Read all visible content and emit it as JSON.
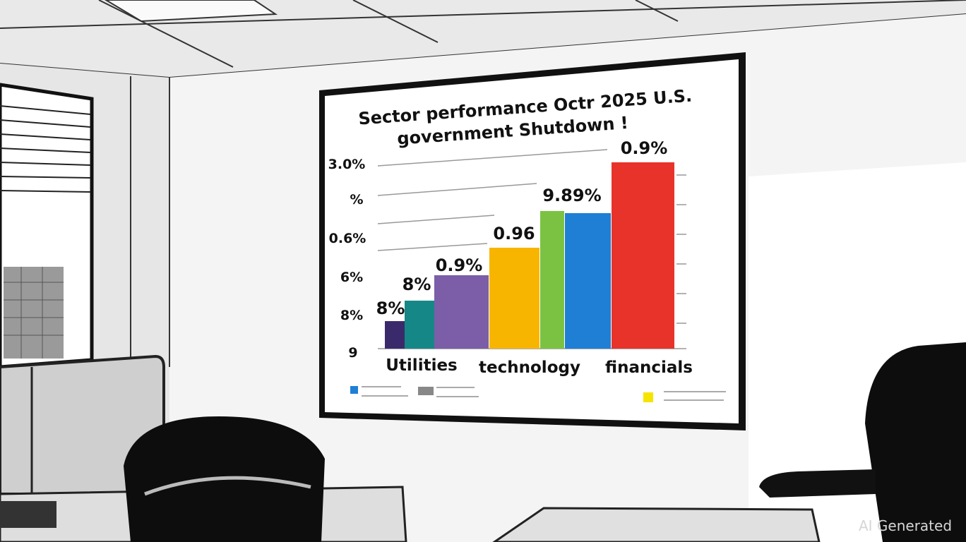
{
  "screen": {
    "title_lines": [
      "Sector performance Octr 2025 U.S.",
      "government Shutdown !"
    ],
    "y_labels": [
      "3.0%",
      "%",
      "0.6%",
      "6%",
      "8%",
      "9"
    ],
    "bar_labels": [
      "8%",
      "8%",
      "0.9%",
      "0.96",
      "9.89%",
      "0.9%"
    ],
    "categories": [
      "Utilities",
      "technology",
      "financials"
    ]
  },
  "watermark": "AI Generated"
}
